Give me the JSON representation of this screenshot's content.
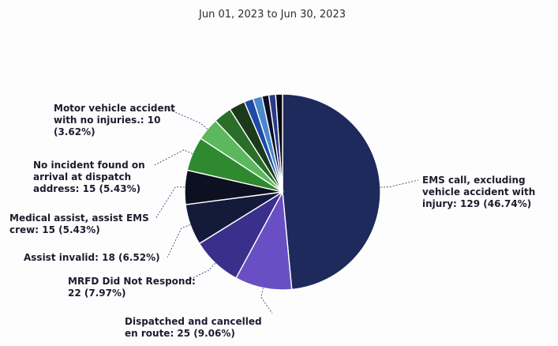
{
  "chart_data": {
    "type": "pie",
    "title": "",
    "subtitle": "Jun 01, 2023 to Jun 30, 2023",
    "slices": [
      {
        "name": "EMS call, excluding vehicle accident with injury",
        "value": 129,
        "percent": "46.74%",
        "color": "#1e2a5c",
        "label": [
          "EMS call, excluding",
          "vehicle accident with",
          "injury: 129 (46.74%)"
        ]
      },
      {
        "name": "Dispatched and cancelled en route",
        "value": 25,
        "percent": "9.06%",
        "color": "#6a4fc4",
        "label": [
          "Dispatched and cancelled",
          "en route: 25 (9.06%)"
        ]
      },
      {
        "name": "MRFD Did Not Respond",
        "value": 22,
        "percent": "7.97%",
        "color": "#3b2f8c",
        "label": [
          "MRFD Did Not Respond:",
          "22 (7.97%)"
        ]
      },
      {
        "name": "Assist invalid",
        "value": 18,
        "percent": "6.52%",
        "color": "#141a3a",
        "label": [
          "Assist invalid: 18 (6.52%)"
        ]
      },
      {
        "name": "Medical assist, assist EMS crew",
        "value": 15,
        "percent": "5.43%",
        "color": "#0d1020",
        "label": [
          "Medical assist, assist EMS",
          "crew: 15 (5.43%)"
        ]
      },
      {
        "name": "No incident found on arrival at dispatch address",
        "value": 15,
        "percent": "5.43%",
        "color": "#2f8a2f",
        "label": [
          "No incident found on",
          "arrival at dispatch",
          "address: 15 (5.43%)"
        ]
      },
      {
        "name": "Motor vehicle accident with no injuries.",
        "value": 10,
        "percent": "3.62%",
        "color": "#5cb85c",
        "label": [
          "Motor vehicle accident",
          "with no injuries.: 10",
          "(3.62%)"
        ]
      },
      {
        "name": "",
        "value": 8,
        "percent": "",
        "color": "#2a6e2a",
        "label": []
      },
      {
        "name": "",
        "value": 7,
        "percent": "",
        "color": "#1a3a1a",
        "label": []
      },
      {
        "name": "",
        "value": 4,
        "percent": "",
        "color": "#1e4aa8",
        "label": []
      },
      {
        "name": "",
        "value": 4,
        "percent": "",
        "color": "#4a88cc",
        "label": []
      },
      {
        "name": "",
        "value": 3,
        "percent": "",
        "color": "#0a0f26",
        "label": []
      },
      {
        "name": "",
        "value": 3,
        "percent": "",
        "color": "#2a3a8a",
        "label": []
      },
      {
        "name": "",
        "value": 3,
        "percent": "",
        "color": "#050814",
        "label": []
      }
    ]
  }
}
